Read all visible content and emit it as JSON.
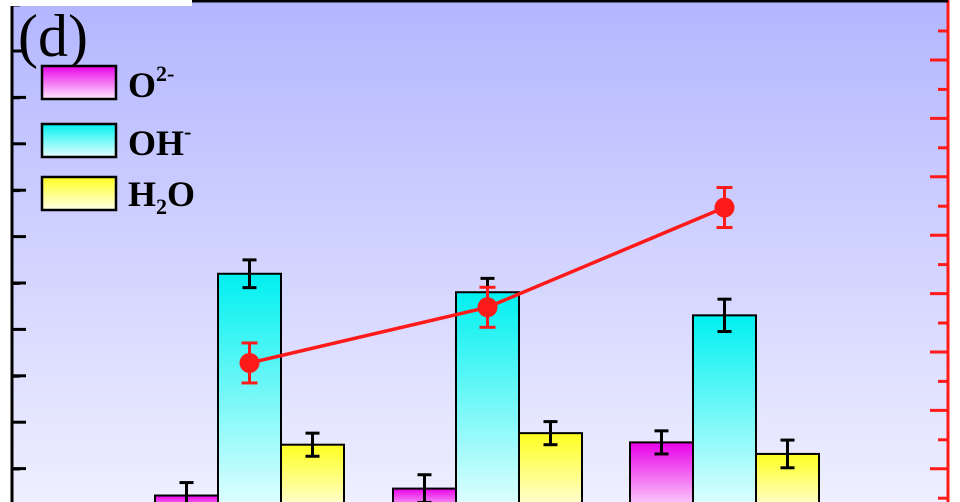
{
  "panel_label": "(d)",
  "colors": {
    "O2": [
      "#e800e8",
      "#ffe8ff"
    ],
    "OH": [
      "#00f0f0",
      "#e8ffff"
    ],
    "H2O": [
      "#ffff20",
      "#ffffe8"
    ],
    "line": "#ff1a1a",
    "bg_top": "#b3b6ff",
    "bg_bottom": "#efefff"
  },
  "chart_data": {
    "type": "bar",
    "title": "",
    "xlabel": "",
    "ylabel": "",
    "grid": false,
    "legend_placement": "top-left",
    "groups": 3,
    "categories": [
      "",
      "",
      ""
    ],
    "series": [
      {
        "name": "O2-",
        "values": [
          0.4,
          0.55,
          1.55
        ],
        "errors": [
          0.28,
          0.3,
          0.25
        ]
      },
      {
        "name": "OH-",
        "values": [
          5.2,
          4.8,
          4.3
        ],
        "errors": [
          0.3,
          0.3,
          0.35
        ]
      },
      {
        "name": "H2O",
        "values": [
          1.5,
          1.75,
          1.3
        ],
        "errors": [
          0.25,
          0.25,
          0.3
        ]
      }
    ],
    "ylim": [
      0,
      10.4
    ],
    "line_series": {
      "values": [
        3.6,
        4.8,
        6.95
      ],
      "errors": [
        0.55,
        0.55,
        0.55
      ],
      "ylim": [
        0,
        9.6
      ],
      "axis": "right"
    }
  },
  "legend": [
    {
      "key": "O2",
      "text": "O",
      "sup": "2-"
    },
    {
      "key": "OH",
      "text": "OH",
      "sup": "-"
    },
    {
      "key": "H2O",
      "text": "H",
      "sub": "2",
      "text2": "O"
    }
  ]
}
